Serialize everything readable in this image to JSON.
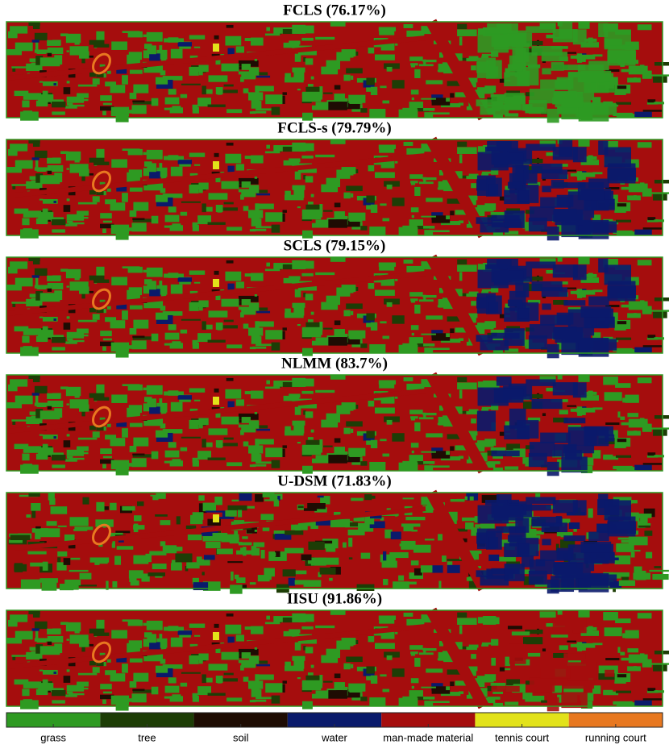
{
  "panels": [
    {
      "title": "FCLS (76.17%)"
    },
    {
      "title": "FCLS-s (79.79%)"
    },
    {
      "title": "SCLS (79.15%)"
    },
    {
      "title": "NLMM (83.7%)"
    },
    {
      "title": "U-DSM (71.83%)"
    },
    {
      "title": "IISU (91.86%)"
    }
  ],
  "legend": [
    {
      "label": "grass",
      "color": "#2e9a22"
    },
    {
      "label": "tree",
      "color": "#1d3d06"
    },
    {
      "label": "soil",
      "color": "#1e0c03"
    },
    {
      "label": "water",
      "color": "#0a1a6b"
    },
    {
      "label": "man-made material",
      "color": "#a50d0d"
    },
    {
      "label": "tennis court",
      "color": "#e2e21a"
    },
    {
      "label": "running court",
      "color": "#e87820"
    }
  ]
}
